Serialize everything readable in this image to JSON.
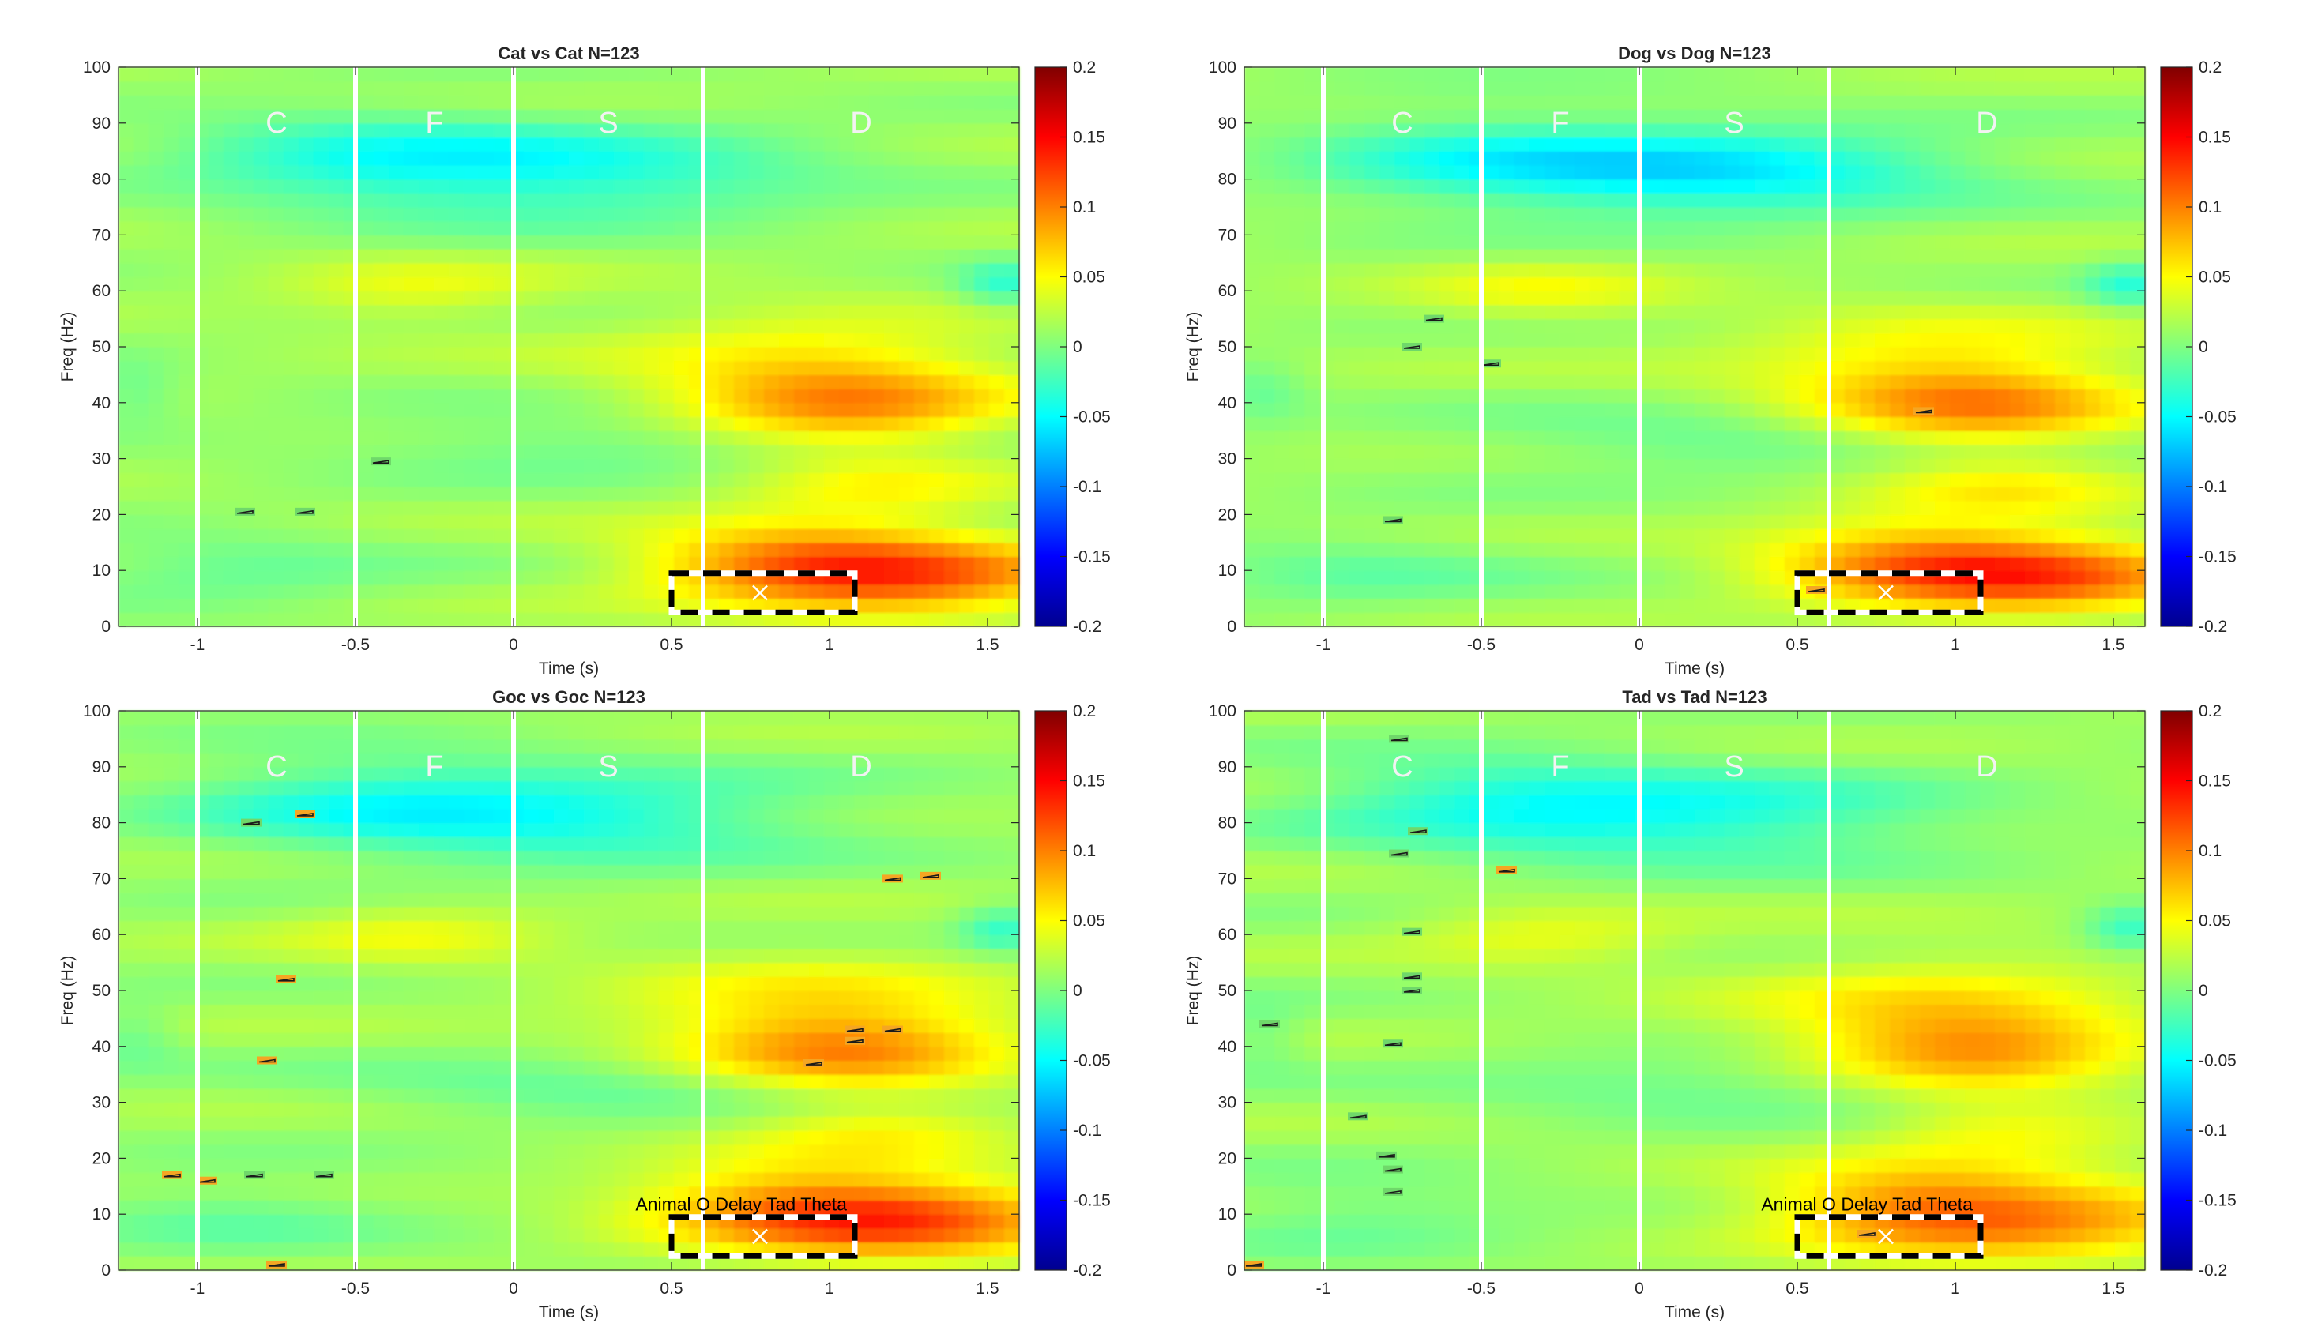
{
  "colors": {
    "background": "#ffffff",
    "axis": "#262626",
    "phase_line": "#ffffff",
    "phase_label": "#f2f2f2",
    "roi_dash_dark": "#000000",
    "roi_dash_light": "#ffffff",
    "contour": "#1a1a1a"
  },
  "colormap": "jet",
  "chart_data": [
    {
      "type": "heatmap",
      "title": "Cat vs Cat N=123",
      "xlabel": "Time (s)",
      "ylabel": "Freq (Hz)",
      "xlim": [
        -1.25,
        1.6
      ],
      "ylim": [
        0,
        100
      ],
      "xticks": [
        -1,
        -0.5,
        0,
        0.5,
        1,
        1.5
      ],
      "xtick_labels": [
        "-1",
        "-0.5",
        "0",
        "0.5",
        "1",
        "1.5"
      ],
      "yticks": [
        0,
        10,
        20,
        30,
        40,
        50,
        60,
        70,
        80,
        90,
        100
      ],
      "ytick_labels": [
        "0",
        "10",
        "20",
        "30",
        "40",
        "50",
        "60",
        "70",
        "80",
        "90",
        "100"
      ],
      "clim": [
        -0.2,
        0.2
      ],
      "colorbar_ticks": [
        0.2,
        0.15,
        0.1,
        0.05,
        0,
        -0.05,
        -0.1,
        -0.15,
        -0.2
      ],
      "colorbar_tick_labels": [
        "0.2",
        "0.15",
        "0.1",
        "0.05",
        "0",
        "-0.05",
        "-0.1",
        "-0.15",
        "-0.2"
      ],
      "phase_lines": [
        -1,
        -0.5,
        0,
        0.6
      ],
      "phase_labels": [
        {
          "text": "C",
          "x": -0.75,
          "y": 90
        },
        {
          "text": "F",
          "x": -0.25,
          "y": 90
        },
        {
          "text": "S",
          "x": 0.3,
          "y": 90
        },
        {
          "text": "D",
          "x": 1.1,
          "y": 90
        }
      ],
      "roi_box": {
        "t0": 0.5,
        "t1": 1.08,
        "f0": 2.5,
        "f1": 9.5
      },
      "roi_marker": {
        "t": 0.78,
        "f": 6
      },
      "roi_label": "",
      "significant_clusters": [
        {
          "t": -0.85,
          "f": 20.5,
          "sign": "neg"
        },
        {
          "t": -0.66,
          "f": 20.5,
          "sign": "neg"
        },
        {
          "t": -0.42,
          "f": 29.5,
          "sign": "neg"
        }
      ]
    },
    {
      "type": "heatmap",
      "title": "Dog vs Dog N=123",
      "xlabel": "Time (s)",
      "ylabel": "Freq (Hz)",
      "xlim": [
        -1.25,
        1.6
      ],
      "ylim": [
        0,
        100
      ],
      "xticks": [
        -1,
        -0.5,
        0,
        0.5,
        1,
        1.5
      ],
      "xtick_labels": [
        "-1",
        "-0.5",
        "0",
        "0.5",
        "1",
        "1.5"
      ],
      "yticks": [
        0,
        10,
        20,
        30,
        40,
        50,
        60,
        70,
        80,
        90,
        100
      ],
      "ytick_labels": [
        "0",
        "10",
        "20",
        "30",
        "40",
        "50",
        "60",
        "70",
        "80",
        "90",
        "100"
      ],
      "clim": [
        -0.2,
        0.2
      ],
      "colorbar_ticks": [
        0.2,
        0.15,
        0.1,
        0.05,
        0,
        -0.05,
        -0.1,
        -0.15,
        -0.2
      ],
      "colorbar_tick_labels": [
        "0.2",
        "0.15",
        "0.1",
        "0.05",
        "0",
        "-0.05",
        "-0.1",
        "-0.15",
        "-0.2"
      ],
      "phase_lines": [
        -1,
        -0.5,
        0,
        0.6
      ],
      "phase_labels": [
        {
          "text": "C",
          "x": -0.75,
          "y": 90
        },
        {
          "text": "F",
          "x": -0.25,
          "y": 90
        },
        {
          "text": "S",
          "x": 0.3,
          "y": 90
        },
        {
          "text": "D",
          "x": 1.1,
          "y": 90
        }
      ],
      "roi_box": {
        "t0": 0.5,
        "t1": 1.08,
        "f0": 2.5,
        "f1": 9.5
      },
      "roi_marker": {
        "t": 0.78,
        "f": 6
      },
      "roi_label": "",
      "significant_clusters": [
        {
          "t": -0.65,
          "f": 55,
          "sign": "neg"
        },
        {
          "t": -0.72,
          "f": 50,
          "sign": "neg"
        },
        {
          "t": -0.47,
          "f": 47,
          "sign": "neg"
        },
        {
          "t": -0.78,
          "f": 19,
          "sign": "neg"
        },
        {
          "t": 0.9,
          "f": 38.5,
          "sign": "pos"
        },
        {
          "t": 0.56,
          "f": 6.5,
          "sign": "pos"
        }
      ]
    },
    {
      "type": "heatmap",
      "title": "Goc vs Goc N=123",
      "xlabel": "Time (s)",
      "ylabel": "Freq (Hz)",
      "xlim": [
        -1.25,
        1.6
      ],
      "ylim": [
        0,
        100
      ],
      "xticks": [
        -1,
        -0.5,
        0,
        0.5,
        1,
        1.5
      ],
      "xtick_labels": [
        "-1",
        "-0.5",
        "0",
        "0.5",
        "1",
        "1.5"
      ],
      "yticks": [
        0,
        10,
        20,
        30,
        40,
        50,
        60,
        70,
        80,
        90,
        100
      ],
      "ytick_labels": [
        "0",
        "10",
        "20",
        "30",
        "40",
        "50",
        "60",
        "70",
        "80",
        "90",
        "100"
      ],
      "clim": [
        -0.2,
        0.2
      ],
      "colorbar_ticks": [
        0.2,
        0.15,
        0.1,
        0.05,
        0,
        -0.05,
        -0.1,
        -0.15,
        -0.2
      ],
      "colorbar_tick_labels": [
        "0.2",
        "0.15",
        "0.1",
        "0.05",
        "0",
        "-0.05",
        "-0.1",
        "-0.15",
        "-0.2"
      ],
      "phase_lines": [
        -1,
        -0.5,
        0,
        0.6
      ],
      "phase_labels": [
        {
          "text": "C",
          "x": -0.75,
          "y": 90
        },
        {
          "text": "F",
          "x": -0.25,
          "y": 90
        },
        {
          "text": "S",
          "x": 0.3,
          "y": 90
        },
        {
          "text": "D",
          "x": 1.1,
          "y": 90
        }
      ],
      "roi_box": {
        "t0": 0.5,
        "t1": 1.08,
        "f0": 2.5,
        "f1": 9.5
      },
      "roi_marker": {
        "t": 0.78,
        "f": 6
      },
      "roi_label": "Animal O Delay Tad Theta",
      "significant_clusters": [
        {
          "t": -0.83,
          "f": 80,
          "sign": "neg"
        },
        {
          "t": -0.66,
          "f": 81.5,
          "sign": "pos"
        },
        {
          "t": -0.72,
          "f": 52,
          "sign": "pos"
        },
        {
          "t": -0.78,
          "f": 37.5,
          "sign": "pos"
        },
        {
          "t": -1.08,
          "f": 17,
          "sign": "pos"
        },
        {
          "t": -0.97,
          "f": 16,
          "sign": "pos"
        },
        {
          "t": -0.82,
          "f": 17,
          "sign": "neg"
        },
        {
          "t": -0.6,
          "f": 17,
          "sign": "neg"
        },
        {
          "t": -0.75,
          "f": 1,
          "sign": "pos"
        },
        {
          "t": 1.2,
          "f": 70,
          "sign": "pos"
        },
        {
          "t": 1.32,
          "f": 70.5,
          "sign": "pos"
        },
        {
          "t": 1.08,
          "f": 43,
          "sign": "pos"
        },
        {
          "t": 1.2,
          "f": 43,
          "sign": "pos"
        },
        {
          "t": 0.95,
          "f": 37,
          "sign": "pos"
        },
        {
          "t": 1.08,
          "f": 41,
          "sign": "pos"
        }
      ]
    },
    {
      "type": "heatmap",
      "title": "Tad vs Tad N=123",
      "xlabel": "Time (s)",
      "ylabel": "Freq (Hz)",
      "xlim": [
        -1.25,
        1.6
      ],
      "ylim": [
        0,
        100
      ],
      "xticks": [
        -1,
        -0.5,
        0,
        0.5,
        1,
        1.5
      ],
      "xtick_labels": [
        "-1",
        "-0.5",
        "0",
        "0.5",
        "1",
        "1.5"
      ],
      "yticks": [
        0,
        10,
        20,
        30,
        40,
        50,
        60,
        70,
        80,
        90,
        100
      ],
      "ytick_labels": [
        "0",
        "10",
        "20",
        "30",
        "40",
        "50",
        "60",
        "70",
        "80",
        "90",
        "100"
      ],
      "clim": [
        -0.2,
        0.2
      ],
      "colorbar_ticks": [
        0.2,
        0.15,
        0.1,
        0.05,
        0,
        -0.05,
        -0.1,
        -0.15,
        -0.2
      ],
      "colorbar_tick_labels": [
        "0.2",
        "0.15",
        "0.1",
        "0.05",
        "0",
        "-0.05",
        "-0.1",
        "-0.15",
        "-0.2"
      ],
      "phase_lines": [
        -1,
        -0.5,
        0,
        0.6
      ],
      "phase_labels": [
        {
          "text": "C",
          "x": -0.75,
          "y": 90
        },
        {
          "text": "F",
          "x": -0.25,
          "y": 90
        },
        {
          "text": "S",
          "x": 0.3,
          "y": 90
        },
        {
          "text": "D",
          "x": 1.1,
          "y": 90
        }
      ],
      "roi_box": {
        "t0": 0.5,
        "t1": 1.08,
        "f0": 2.5,
        "f1": 9.5
      },
      "roi_marker": {
        "t": 0.78,
        "f": 6
      },
      "roi_label": "Animal O Delay Tad Theta",
      "significant_clusters": [
        {
          "t": -0.76,
          "f": 95,
          "sign": "neg"
        },
        {
          "t": -0.7,
          "f": 78.5,
          "sign": "neg"
        },
        {
          "t": -0.76,
          "f": 74.5,
          "sign": "neg"
        },
        {
          "t": -0.72,
          "f": 60.5,
          "sign": "neg"
        },
        {
          "t": -0.72,
          "f": 52.5,
          "sign": "neg"
        },
        {
          "t": -0.72,
          "f": 50,
          "sign": "neg"
        },
        {
          "t": -0.78,
          "f": 40.5,
          "sign": "neg"
        },
        {
          "t": -0.42,
          "f": 71.5,
          "sign": "pos"
        },
        {
          "t": -1.17,
          "f": 44,
          "sign": "neg"
        },
        {
          "t": -0.89,
          "f": 27.5,
          "sign": "neg"
        },
        {
          "t": -0.8,
          "f": 20.5,
          "sign": "neg"
        },
        {
          "t": -0.78,
          "f": 18,
          "sign": "neg"
        },
        {
          "t": -0.78,
          "f": 14,
          "sign": "neg"
        },
        {
          "t": -1.22,
          "f": 1,
          "sign": "pos"
        },
        {
          "t": 0.72,
          "f": 6.5,
          "sign": "pos"
        }
      ]
    }
  ]
}
